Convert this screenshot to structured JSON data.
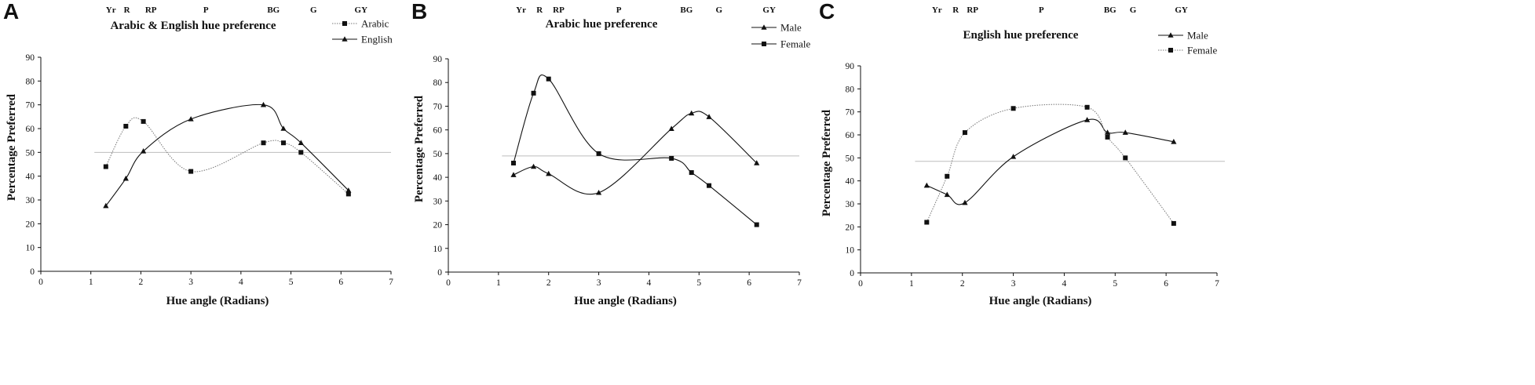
{
  "chart_data": [
    {
      "type": "line",
      "panel": "A",
      "title": "Arabic & English hue preference",
      "xlabel": "Hue angle (Radians)",
      "ylabel": "Percentage Preferred",
      "xlim": [
        0,
        7
      ],
      "ylim": [
        0,
        90
      ],
      "xticks": [
        "0",
        "1",
        "2",
        "3",
        "4",
        "5",
        "6",
        "7"
      ],
      "yticks": [
        "0",
        "10",
        "20",
        "30",
        "40",
        "50",
        "60",
        "70",
        "80",
        "90"
      ],
      "hue_labels": [
        {
          "label": "Yr",
          "x": 1.4
        },
        {
          "label": "R",
          "x": 1.72
        },
        {
          "label": "RP",
          "x": 2.2
        },
        {
          "label": "P",
          "x": 3.3
        },
        {
          "label": "BG",
          "x": 4.65
        },
        {
          "label": "G",
          "x": 5.45
        },
        {
          "label": "GY",
          "x": 6.4
        }
      ],
      "reference_line": 50,
      "legend_position": "top-right",
      "series": [
        {
          "name": "Arabic",
          "marker": "square",
          "style": "dotted",
          "x": [
            1.3,
            1.7,
            2.05,
            3.0,
            4.45,
            4.85,
            5.2,
            6.15
          ],
          "y": [
            44,
            61,
            63,
            42,
            54,
            54,
            50,
            32.5
          ]
        },
        {
          "name": "English",
          "marker": "triangle",
          "style": "solid",
          "x": [
            1.3,
            1.7,
            2.05,
            3.0,
            4.45,
            4.85,
            5.2,
            6.15
          ],
          "y": [
            27.5,
            39,
            50.5,
            64,
            70,
            60,
            54,
            34
          ]
        }
      ]
    },
    {
      "type": "line",
      "panel": "B",
      "title": "Arabic hue preference",
      "xlabel": "Hue angle (Radians)",
      "ylabel": "Percentage Preferred",
      "xlim": [
        0,
        7
      ],
      "ylim": [
        0,
        90
      ],
      "xticks": [
        "0",
        "1",
        "2",
        "3",
        "4",
        "5",
        "6",
        "7"
      ],
      "yticks": [
        "0",
        "10",
        "20",
        "30",
        "40",
        "50",
        "60",
        "70",
        "80",
        "90"
      ],
      "hue_labels": [
        {
          "label": "Yr",
          "x": 1.45
        },
        {
          "label": "R",
          "x": 1.82
        },
        {
          "label": "RP",
          "x": 2.2
        },
        {
          "label": "P",
          "x": 3.4
        },
        {
          "label": "BG",
          "x": 4.75
        },
        {
          "label": "G",
          "x": 5.4
        },
        {
          "label": "GY",
          "x": 6.4
        }
      ],
      "reference_line": 49,
      "legend_position": "top-right",
      "series": [
        {
          "name": "Male",
          "marker": "triangle",
          "style": "solid",
          "x": [
            1.3,
            1.7,
            2.0,
            3.0,
            4.45,
            4.85,
            5.2,
            6.15
          ],
          "y": [
            41,
            44.5,
            41.5,
            33.5,
            60.5,
            67,
            65.5,
            46
          ]
        },
        {
          "name": "Female",
          "marker": "square",
          "style": "solid",
          "x": [
            1.3,
            1.7,
            2.0,
            3.0,
            4.45,
            4.85,
            5.2,
            6.15
          ],
          "y": [
            46,
            75.5,
            81.5,
            50,
            48,
            42,
            36.5,
            20
          ]
        }
      ]
    },
    {
      "type": "line",
      "panel": "C",
      "title": "English hue preference",
      "xlabel": "Hue angle (Radians)",
      "ylabel": "Percentage Preferred",
      "xlim": [
        0,
        7
      ],
      "ylim": [
        0,
        90
      ],
      "xticks": [
        "0",
        "1",
        "2",
        "3",
        "4",
        "5",
        "6",
        "7"
      ],
      "yticks": [
        "0",
        "10",
        "20",
        "30",
        "40",
        "50",
        "60",
        "70",
        "80",
        "90"
      ],
      "hue_labels": [
        {
          "label": "Yr",
          "x": 1.5
        },
        {
          "label": "R",
          "x": 1.87
        },
        {
          "label": "RP",
          "x": 2.2
        },
        {
          "label": "P",
          "x": 3.55
        },
        {
          "label": "BG",
          "x": 4.9
        },
        {
          "label": "G",
          "x": 5.35
        },
        {
          "label": "GY",
          "x": 6.3
        }
      ],
      "reference_line": 48.5,
      "legend_position": "top-right",
      "series": [
        {
          "name": "Male",
          "marker": "triangle",
          "style": "solid",
          "x": [
            1.3,
            1.7,
            2.05,
            3.0,
            4.45,
            4.85,
            5.2,
            6.15
          ],
          "y": [
            38,
            34,
            30.5,
            50.5,
            66.5,
            61,
            61,
            57
          ]
        },
        {
          "name": "Female",
          "marker": "square",
          "style": "dotted",
          "x": [
            1.3,
            1.7,
            2.05,
            3.0,
            4.45,
            4.85,
            5.2,
            6.15
          ],
          "y": [
            22,
            42,
            61,
            71.5,
            72,
            59,
            50,
            21.5
          ]
        }
      ]
    }
  ]
}
